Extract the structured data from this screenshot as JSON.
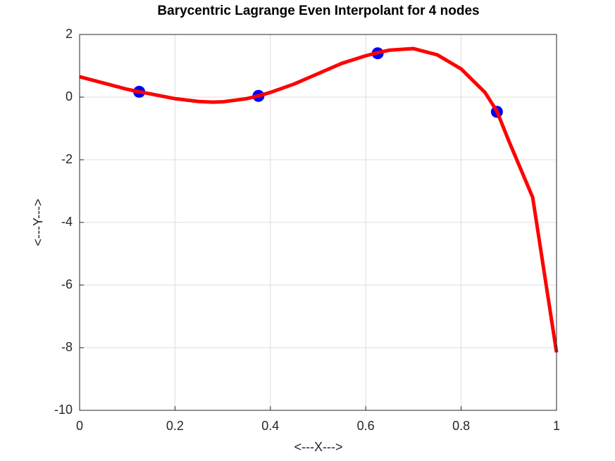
{
  "chart_data": {
    "type": "line",
    "title": "Barycentric Lagrange Even Interpolant for 4 nodes",
    "x_label": "<---X--->",
    "y_label": "<---Y--->",
    "xlim": [
      0,
      1
    ],
    "ylim": [
      -10,
      2
    ],
    "xticks": [
      0,
      0.2,
      0.4,
      0.6,
      0.8,
      1
    ],
    "yticks": [
      -10,
      -8,
      -6,
      -4,
      -2,
      0,
      2
    ],
    "grid": true,
    "series": [
      {
        "type": "line",
        "color": "#ff0000",
        "x": [
          0,
          0.05,
          0.1,
          0.125,
          0.15,
          0.2,
          0.25,
          0.28,
          0.3,
          0.35,
          0.375,
          0.4,
          0.45,
          0.5,
          0.55,
          0.6,
          0.625,
          0.65,
          0.7,
          0.75,
          0.8,
          0.85,
          0.875,
          0.9,
          0.95,
          1
        ],
        "values": [
          0.65,
          0.45,
          0.25,
          0.17,
          0.1,
          -0.05,
          -0.14,
          -0.16,
          -0.15,
          -0.05,
          0.04,
          0.15,
          0.42,
          0.75,
          1.08,
          1.32,
          1.42,
          1.5,
          1.55,
          1.35,
          0.9,
          0.15,
          -0.45,
          -1.4,
          -3.2,
          -8.15
        ]
      },
      {
        "type": "scatter",
        "color": "#0000ff",
        "x": [
          0.125,
          0.375,
          0.625,
          0.875
        ],
        "values": [
          0.17,
          0.04,
          1.4,
          -0.47
        ]
      }
    ]
  }
}
